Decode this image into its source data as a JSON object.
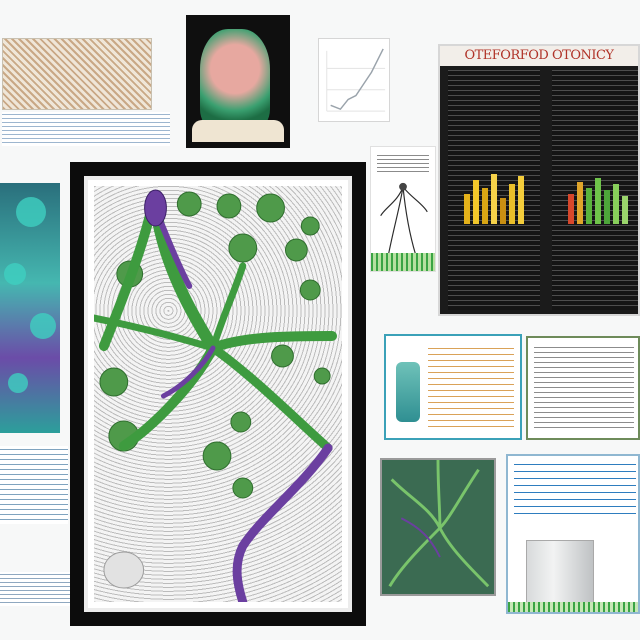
{
  "colors": {
    "background": "#f7f8f8",
    "frame": "#0c0c0c",
    "stem_green": "#3e9b3f",
    "stem_purple": "#6b3fa0",
    "poster_title": "#b03328",
    "chart_line": "#9aa3ab"
  },
  "poster": {
    "title": "OTEFORFOD OTONICY"
  }
}
